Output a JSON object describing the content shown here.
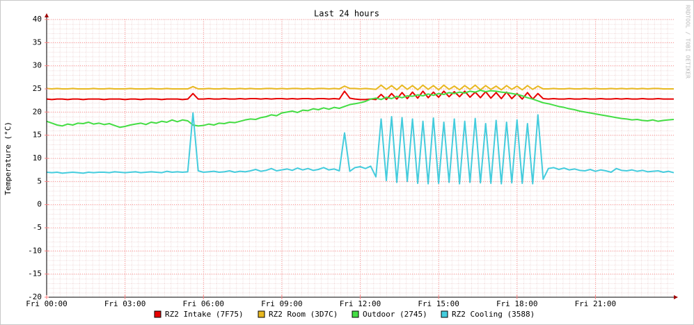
{
  "chart_data": {
    "type": "line",
    "title": "Last 24 hours",
    "ylabel": "Temperature (°C)",
    "watermark": "RRDTOOL / TOBI OETIKER",
    "legend": "bottom",
    "grid": true,
    "x": [
      0,
      0.2,
      0.4,
      0.6,
      0.8,
      1,
      1.2,
      1.4,
      1.6,
      1.8,
      2,
      2.2,
      2.4,
      2.6,
      2.8,
      3,
      3.2,
      3.4,
      3.6,
      3.8,
      4,
      4.2,
      4.4,
      4.6,
      4.8,
      5,
      5.2,
      5.4,
      5.6,
      5.8,
      6,
      6.2,
      6.4,
      6.6,
      6.8,
      7,
      7.2,
      7.4,
      7.6,
      7.8,
      8,
      8.2,
      8.4,
      8.6,
      8.8,
      9,
      9.2,
      9.4,
      9.6,
      9.8,
      10,
      10.2,
      10.4,
      10.6,
      10.8,
      11,
      11.2,
      11.4,
      11.6,
      11.8,
      12,
      12.2,
      12.4,
      12.6,
      12.8,
      13,
      13.2,
      13.4,
      13.6,
      13.8,
      14,
      14.2,
      14.4,
      14.6,
      14.8,
      15,
      15.2,
      15.4,
      15.6,
      15.8,
      16,
      16.2,
      16.4,
      16.6,
      16.8,
      17,
      17.2,
      17.4,
      17.6,
      17.8,
      18,
      18.2,
      18.4,
      18.6,
      18.8,
      19,
      19.2,
      19.4,
      19.6,
      19.8,
      20,
      20.2,
      20.4,
      20.6,
      20.8,
      21,
      21.2,
      21.4,
      21.6,
      21.8,
      22,
      22.2,
      22.4,
      22.6,
      22.8,
      23,
      23.2,
      23.4,
      23.6,
      23.8,
      24
    ],
    "xlim": [
      0,
      24
    ],
    "xticks": [
      {
        "value": 0,
        "label": "Fri 00:00"
      },
      {
        "value": 3,
        "label": "Fri 03:00"
      },
      {
        "value": 6,
        "label": "Fri 06:00"
      },
      {
        "value": 9,
        "label": "Fri 09:00"
      },
      {
        "value": 12,
        "label": "Fri 12:00"
      },
      {
        "value": 15,
        "label": "Fri 15:00"
      },
      {
        "value": 18,
        "label": "Fri 18:00"
      },
      {
        "value": 21,
        "label": "Fri 21:00"
      }
    ],
    "ylim": [
      -20,
      40
    ],
    "yticks": [
      -20,
      -15,
      -10,
      -5,
      0,
      5,
      10,
      15,
      20,
      25,
      30,
      35,
      40
    ],
    "series": [
      {
        "name": "RZ2 Intake (7F75)",
        "color": "#e80000",
        "values": [
          22.8,
          22.7,
          22.8,
          22.8,
          22.7,
          22.8,
          22.8,
          22.7,
          22.8,
          22.8,
          22.8,
          22.7,
          22.8,
          22.8,
          22.8,
          22.7,
          22.8,
          22.8,
          22.7,
          22.8,
          22.8,
          22.8,
          22.7,
          22.8,
          22.8,
          22.8,
          22.7,
          22.8,
          24.0,
          22.8,
          22.8,
          22.9,
          22.8,
          22.8,
          22.9,
          22.8,
          22.8,
          22.9,
          22.8,
          22.9,
          22.9,
          22.8,
          22.9,
          22.8,
          22.9,
          22.9,
          22.8,
          22.9,
          22.8,
          22.9,
          22.9,
          22.8,
          22.9,
          22.9,
          22.8,
          22.9,
          22.8,
          24.5,
          23.0,
          22.8,
          22.7,
          22.7,
          22.8,
          22.7,
          23.8,
          22.7,
          24.0,
          22.8,
          24.2,
          22.9,
          24.3,
          23.0,
          24.5,
          23.1,
          24.3,
          23.2,
          24.5,
          23.3,
          24.4,
          23.3,
          24.5,
          23.2,
          24.3,
          23.1,
          24.4,
          23.0,
          24.2,
          22.9,
          24.3,
          22.9,
          24.0,
          22.8,
          24.2,
          22.8,
          24.0,
          22.9,
          22.8,
          22.9,
          22.8,
          22.8,
          22.9,
          22.8,
          22.8,
          22.9,
          22.8,
          22.8,
          22.9,
          22.8,
          22.8,
          22.9,
          22.8,
          22.9,
          22.8,
          22.8,
          22.9,
          22.8,
          22.8,
          22.9,
          22.8,
          22.8,
          22.8
        ]
      },
      {
        "name": "RZ2 Room (3D7C)",
        "color": "#e8b820",
        "values": [
          25.1,
          25.0,
          25.1,
          25.0,
          25.0,
          25.1,
          25.0,
          25.0,
          25.0,
          25.1,
          25.0,
          25.0,
          25.1,
          25.0,
          25.0,
          25.0,
          25.1,
          25.0,
          25.0,
          25.0,
          25.1,
          25.0,
          25.0,
          25.1,
          25.0,
          25.0,
          25.0,
          25.0,
          25.5,
          25.0,
          25.0,
          25.1,
          25.0,
          25.0,
          25.1,
          25.0,
          25.0,
          25.1,
          25.0,
          25.1,
          25.0,
          25.0,
          25.1,
          25.1,
          25.0,
          25.1,
          25.0,
          25.1,
          25.1,
          25.0,
          25.1,
          25.0,
          25.1,
          25.1,
          25.0,
          25.1,
          25.0,
          25.6,
          25.1,
          25.1,
          25.0,
          25.1,
          25.0,
          24.9,
          25.8,
          24.9,
          25.7,
          24.8,
          25.8,
          24.9,
          25.7,
          24.8,
          25.8,
          24.9,
          25.7,
          24.8,
          25.8,
          24.9,
          25.6,
          24.8,
          25.7,
          24.9,
          25.8,
          24.8,
          25.7,
          24.9,
          25.6,
          24.8,
          25.7,
          24.9,
          25.6,
          24.8,
          25.7,
          24.9,
          25.6,
          25.0,
          25.0,
          25.1,
          25.0,
          25.0,
          25.1,
          25.0,
          25.0,
          25.1,
          25.0,
          25.1,
          25.0,
          25.0,
          25.1,
          25.0,
          25.1,
          25.0,
          25.1,
          25.0,
          25.1,
          25.0,
          25.1,
          25.1,
          25.0,
          25.0,
          25.0
        ]
      },
      {
        "name": "Outdoor (2745)",
        "color": "#44dd44",
        "values": [
          18.0,
          17.6,
          17.2,
          17.0,
          17.4,
          17.2,
          17.6,
          17.5,
          17.8,
          17.4,
          17.6,
          17.3,
          17.5,
          17.1,
          16.7,
          16.9,
          17.2,
          17.4,
          17.6,
          17.3,
          17.8,
          17.6,
          18.0,
          17.8,
          18.3,
          17.9,
          18.3,
          18.1,
          17.2,
          17.0,
          17.1,
          17.4,
          17.2,
          17.6,
          17.5,
          17.8,
          17.7,
          18.0,
          18.3,
          18.5,
          18.4,
          18.8,
          19.0,
          19.4,
          19.2,
          19.8,
          20.0,
          20.2,
          19.9,
          20.4,
          20.3,
          20.7,
          20.5,
          20.9,
          20.6,
          21.0,
          20.8,
          21.2,
          21.6,
          21.8,
          22.0,
          22.3,
          22.8,
          23.0,
          22.7,
          23.2,
          22.9,
          23.4,
          23.1,
          23.5,
          23.4,
          23.7,
          23.5,
          23.9,
          23.6,
          24.0,
          23.8,
          24.2,
          24.0,
          24.3,
          24.1,
          24.5,
          24.3,
          24.7,
          24.4,
          24.6,
          24.5,
          24.3,
          24.2,
          24.0,
          23.8,
          23.5,
          23.1,
          22.8,
          22.4,
          22.0,
          21.8,
          21.5,
          21.2,
          21.0,
          20.7,
          20.5,
          20.2,
          20.0,
          19.8,
          19.6,
          19.4,
          19.2,
          19.0,
          18.8,
          18.6,
          18.5,
          18.3,
          18.4,
          18.2,
          18.1,
          18.3,
          18.0,
          18.2,
          18.3,
          18.4
        ]
      },
      {
        "name": "RZ2 Cooling (3588)",
        "color": "#44ccdd",
        "values": [
          7.0,
          6.9,
          7.0,
          6.8,
          6.9,
          7.0,
          6.9,
          6.8,
          7.0,
          6.9,
          7.0,
          7.0,
          6.9,
          7.1,
          7.0,
          6.9,
          7.0,
          7.1,
          6.9,
          7.0,
          7.1,
          7.0,
          6.9,
          7.2,
          7.0,
          7.1,
          7.0,
          7.1,
          19.8,
          7.3,
          7.0,
          7.1,
          7.2,
          7.0,
          7.1,
          7.3,
          7.0,
          7.2,
          7.1,
          7.3,
          7.6,
          7.2,
          7.4,
          7.8,
          7.3,
          7.5,
          7.7,
          7.4,
          7.9,
          7.5,
          7.8,
          7.4,
          7.6,
          8.0,
          7.5,
          7.7,
          7.3,
          15.5,
          7.2,
          8.0,
          8.2,
          7.8,
          8.3,
          6.0,
          18.5,
          5.2,
          19.0,
          4.8,
          18.8,
          5.0,
          18.5,
          4.6,
          18.0,
          4.5,
          18.7,
          4.6,
          17.8,
          4.8,
          18.5,
          4.5,
          18.0,
          4.8,
          18.6,
          4.7,
          17.5,
          4.6,
          18.2,
          4.5,
          17.8,
          4.7,
          18.3,
          4.6,
          17.5,
          4.5,
          19.4,
          5.5,
          7.8,
          8.0,
          7.6,
          7.9,
          7.5,
          7.7,
          7.4,
          7.3,
          7.6,
          7.2,
          7.5,
          7.3,
          7.0,
          7.8,
          7.4,
          7.3,
          7.5,
          7.2,
          7.4,
          7.1,
          7.2,
          7.3,
          7.0,
          7.2,
          6.9
        ]
      }
    ]
  }
}
